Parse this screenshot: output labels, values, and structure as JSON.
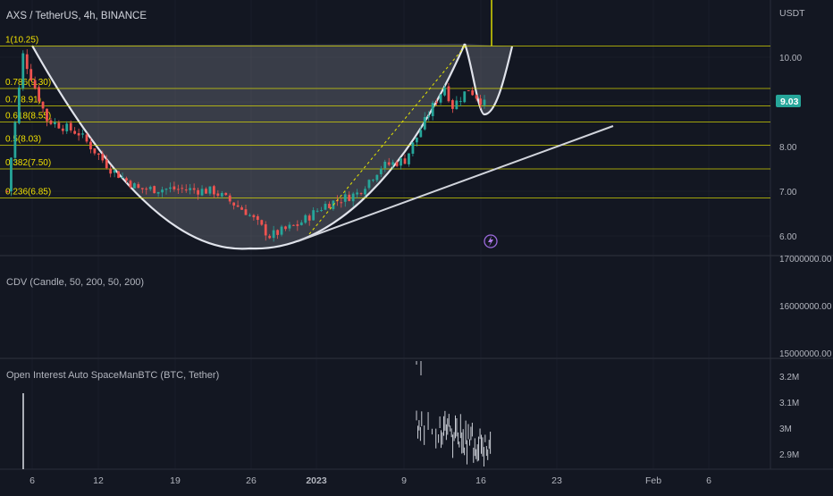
{
  "header": {
    "symbol_line": "AXS / TetherUS, 4h, BINANCE",
    "currency": "USDT"
  },
  "colors": {
    "background": "#131722",
    "up": "#26a69a",
    "down": "#ef5350",
    "fib_line": "#e6e600",
    "fib_label": "#f0e000",
    "price_badge": "#26a69a",
    "pattern_fill": "#787b86",
    "text": "#b2b5be",
    "grid": "#2a2e39"
  },
  "price_badge": "9.03",
  "icons": {
    "event_marker": "lightning-icon"
  },
  "chart_data": [
    {
      "type": "candlestick",
      "name": "price",
      "x_ticks": [
        "6",
        "12",
        "19",
        "26",
        "2023",
        "9",
        "16",
        "23",
        "Feb",
        "6"
      ],
      "y_ticks": [
        "10.00",
        "9.00",
        "8.00",
        "7.00",
        "6.00"
      ],
      "ylim": [
        5.7,
        11.3
      ],
      "fib_levels": [
        {
          "label": "1(10.25)",
          "value": 10.25
        },
        {
          "label": "0.786(9.30)",
          "value": 9.3
        },
        {
          "label": "0.7(8.91)",
          "value": 8.91
        },
        {
          "label": "0.618(8.55)",
          "value": 8.55
        },
        {
          "label": "0.5(8.03)",
          "value": 8.03
        },
        {
          "label": "0.382(7.50)",
          "value": 7.5
        },
        {
          "label": "0.236(6.85)",
          "value": 6.85
        }
      ],
      "anchors": [
        {
          "t": 0,
          "p": 7.0
        },
        {
          "t": 4,
          "p": 10.05
        },
        {
          "t": 10,
          "p": 8.6
        },
        {
          "t": 18,
          "p": 8.3
        },
        {
          "t": 26,
          "p": 7.5
        },
        {
          "t": 33,
          "p": 7.05
        },
        {
          "t": 44,
          "p": 7.05
        },
        {
          "t": 52,
          "p": 7.0
        },
        {
          "t": 60,
          "p": 6.55
        },
        {
          "t": 66,
          "p": 6.0
        },
        {
          "t": 73,
          "p": 6.25
        },
        {
          "t": 80,
          "p": 6.7
        },
        {
          "t": 88,
          "p": 6.95
        },
        {
          "t": 94,
          "p": 7.55
        },
        {
          "t": 100,
          "p": 7.7
        },
        {
          "t": 107,
          "p": 8.9
        },
        {
          "t": 110,
          "p": 9.35
        },
        {
          "t": 112,
          "p": 8.9
        },
        {
          "t": 116,
          "p": 9.3
        },
        {
          "t": 120,
          "p": 8.95
        }
      ]
    },
    {
      "type": "candlestick",
      "name": "CDV",
      "title": "CDV (Candle, 50, 200, 50, 200)",
      "y_ticks": [
        "17000000.00",
        "16000000.00",
        "15000000.00"
      ],
      "ylim": [
        14800000,
        17100000
      ]
    },
    {
      "type": "bar",
      "name": "open_interest",
      "title": "Open Interest Auto SpaceManBTC (BTC, Tether)",
      "y_ticks": [
        "3.2M",
        "3.1M",
        "3M",
        "2.9M"
      ],
      "ylim": [
        2.86,
        3.26
      ]
    }
  ]
}
